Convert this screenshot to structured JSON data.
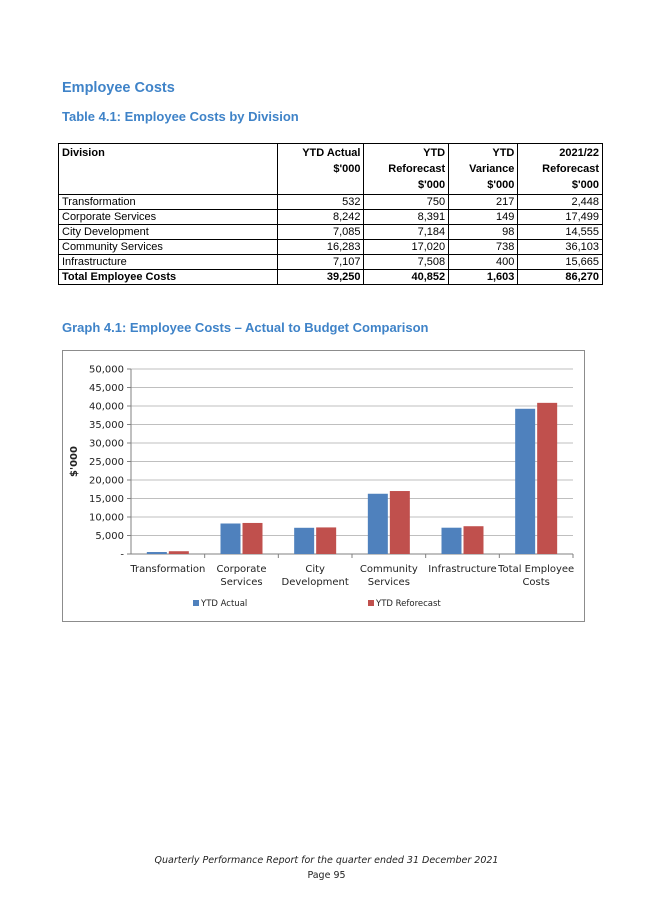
{
  "heading": "Employee Costs",
  "table_title": "Table 4.1: Employee Costs by Division",
  "table": {
    "headers": [
      [
        "Division"
      ],
      [
        "YTD Actual",
        "$'000"
      ],
      [
        "YTD",
        "Reforecast",
        "$'000"
      ],
      [
        "YTD",
        "Variance",
        "$'000"
      ],
      [
        "2021/22",
        "Reforecast",
        "$'000"
      ]
    ],
    "rows": [
      [
        "Transformation",
        "532",
        "750",
        "217",
        "2,448"
      ],
      [
        "Corporate Services",
        "8,242",
        "8,391",
        "149",
        "17,499"
      ],
      [
        "City Development",
        "7,085",
        "7,184",
        "98",
        "14,555"
      ],
      [
        "Community Services",
        "16,283",
        "17,020",
        "738",
        "36,103"
      ],
      [
        "Infrastructure",
        "7,107",
        "7,508",
        "400",
        "15,665"
      ]
    ],
    "total": [
      "Total Employee Costs",
      "39,250",
      "40,852",
      "1,603",
      "86,270"
    ]
  },
  "graph_title": "Graph 4.1: Employee Costs – Actual to Budget Comparison",
  "chart_data": {
    "type": "bar",
    "categories": [
      [
        "Transformation"
      ],
      [
        "Corporate",
        "Services"
      ],
      [
        "City",
        "Development"
      ],
      [
        "Community",
        "Services"
      ],
      [
        "Infrastructure"
      ],
      [
        "Total Employee",
        "Costs"
      ]
    ],
    "series": [
      {
        "name": "YTD Actual",
        "color": "#4f81bd",
        "values": [
          532,
          8242,
          7085,
          16283,
          7107,
          39250
        ]
      },
      {
        "name": "YTD Reforecast",
        "color": "#c0504d",
        "values": [
          750,
          8391,
          7184,
          17020,
          7508,
          40852
        ]
      }
    ],
    "ylabel": "$'000",
    "ylim": [
      0,
      50000
    ],
    "yticks": [
      0,
      5000,
      10000,
      15000,
      20000,
      25000,
      30000,
      35000,
      40000,
      45000,
      50000
    ],
    "ytick_labels": [
      "-",
      "5,000",
      "10,000",
      "15,000",
      "20,000",
      "25,000",
      "30,000",
      "35,000",
      "40,000",
      "45,000",
      "50,000"
    ],
    "grid": true,
    "legend": "bottom"
  },
  "footer": {
    "line1": "Quarterly Performance Report for the quarter ended 31 December 2021",
    "line2": "Page 95"
  }
}
